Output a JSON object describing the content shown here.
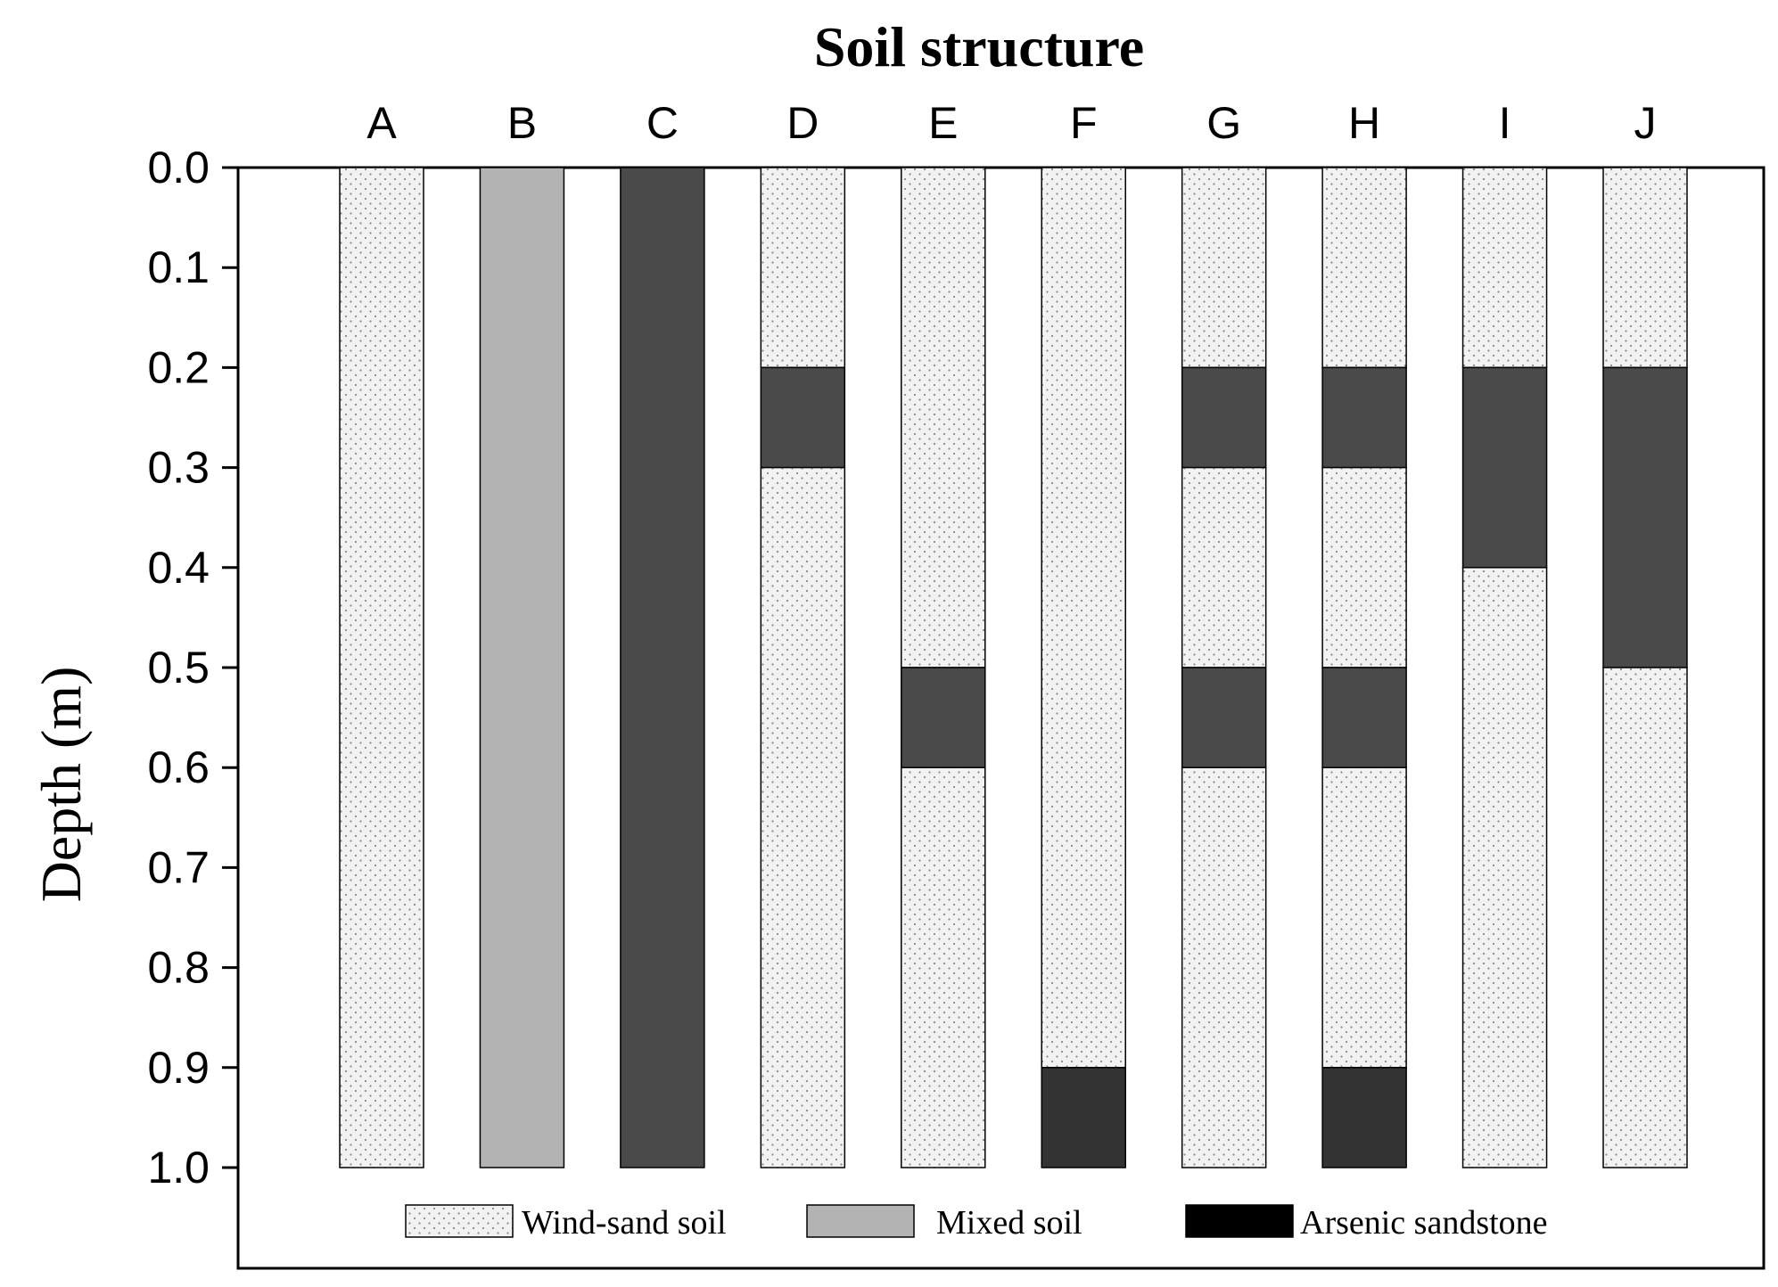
{
  "chart_data": {
    "type": "bar",
    "orientation": "stacked-columns-depth-profile",
    "title": "Soil structure",
    "ylabel": "Depth (m)",
    "xlabel": "",
    "ylim": [
      0.0,
      1.0
    ],
    "y_inverted": true,
    "yticks": [
      "0.0",
      "0.1",
      "0.2",
      "0.3",
      "0.4",
      "0.5",
      "0.6",
      "0.7",
      "0.8",
      "0.9",
      "1.0"
    ],
    "categories": [
      "A",
      "B",
      "C",
      "D",
      "E",
      "F",
      "G",
      "H",
      "I",
      "J"
    ],
    "legend": [
      {
        "name": "Wind-sand soil",
        "pattern": "dotted",
        "color": "#f2f2f2"
      },
      {
        "name": "Mixed soil",
        "pattern": "solid",
        "color": "#b3b3b3"
      },
      {
        "name": "Arsenic sandstone",
        "pattern": "solid",
        "color": "#000000"
      }
    ],
    "profiles": [
      {
        "category": "A",
        "layers": [
          {
            "from": 0.0,
            "to": 1.0,
            "fill": "#f2f2f2",
            "pattern": "dotted"
          }
        ]
      },
      {
        "category": "B",
        "layers": [
          {
            "from": 0.0,
            "to": 1.0,
            "fill": "#b3b3b3",
            "pattern": "solid"
          }
        ]
      },
      {
        "category": "C",
        "layers": [
          {
            "from": 0.0,
            "to": 1.0,
            "fill": "#4a4a4a",
            "pattern": "solid"
          }
        ]
      },
      {
        "category": "D",
        "layers": [
          {
            "from": 0.0,
            "to": 0.2,
            "fill": "#f2f2f2",
            "pattern": "dotted"
          },
          {
            "from": 0.2,
            "to": 0.3,
            "fill": "#4a4a4a",
            "pattern": "solid"
          },
          {
            "from": 0.3,
            "to": 1.0,
            "fill": "#f2f2f2",
            "pattern": "dotted"
          }
        ]
      },
      {
        "category": "E",
        "layers": [
          {
            "from": 0.0,
            "to": 0.5,
            "fill": "#f2f2f2",
            "pattern": "dotted"
          },
          {
            "from": 0.5,
            "to": 0.6,
            "fill": "#4a4a4a",
            "pattern": "solid"
          },
          {
            "from": 0.6,
            "to": 1.0,
            "fill": "#f2f2f2",
            "pattern": "dotted"
          }
        ]
      },
      {
        "category": "F",
        "layers": [
          {
            "from": 0.0,
            "to": 0.9,
            "fill": "#f2f2f2",
            "pattern": "dotted"
          },
          {
            "from": 0.9,
            "to": 1.0,
            "fill": "#333333",
            "pattern": "solid"
          }
        ]
      },
      {
        "category": "G",
        "layers": [
          {
            "from": 0.0,
            "to": 0.2,
            "fill": "#f2f2f2",
            "pattern": "dotted"
          },
          {
            "from": 0.2,
            "to": 0.3,
            "fill": "#4a4a4a",
            "pattern": "solid"
          },
          {
            "from": 0.3,
            "to": 0.5,
            "fill": "#f2f2f2",
            "pattern": "dotted"
          },
          {
            "from": 0.5,
            "to": 0.6,
            "fill": "#4a4a4a",
            "pattern": "solid"
          },
          {
            "from": 0.6,
            "to": 1.0,
            "fill": "#f2f2f2",
            "pattern": "dotted"
          }
        ]
      },
      {
        "category": "H",
        "layers": [
          {
            "from": 0.0,
            "to": 0.2,
            "fill": "#f2f2f2",
            "pattern": "dotted"
          },
          {
            "from": 0.2,
            "to": 0.3,
            "fill": "#4a4a4a",
            "pattern": "solid"
          },
          {
            "from": 0.3,
            "to": 0.5,
            "fill": "#f2f2f2",
            "pattern": "dotted"
          },
          {
            "from": 0.5,
            "to": 0.6,
            "fill": "#4a4a4a",
            "pattern": "solid"
          },
          {
            "from": 0.6,
            "to": 0.9,
            "fill": "#f2f2f2",
            "pattern": "dotted"
          },
          {
            "from": 0.9,
            "to": 1.0,
            "fill": "#333333",
            "pattern": "solid"
          }
        ]
      },
      {
        "category": "I",
        "layers": [
          {
            "from": 0.0,
            "to": 0.2,
            "fill": "#f2f2f2",
            "pattern": "dotted"
          },
          {
            "from": 0.2,
            "to": 0.4,
            "fill": "#4a4a4a",
            "pattern": "solid"
          },
          {
            "from": 0.4,
            "to": 1.0,
            "fill": "#f2f2f2",
            "pattern": "dotted"
          }
        ]
      },
      {
        "category": "J",
        "layers": [
          {
            "from": 0.0,
            "to": 0.2,
            "fill": "#f2f2f2",
            "pattern": "dotted"
          },
          {
            "from": 0.2,
            "to": 0.5,
            "fill": "#4a4a4a",
            "pattern": "solid"
          },
          {
            "from": 0.5,
            "to": 1.0,
            "fill": "#f2f2f2",
            "pattern": "dotted"
          }
        ]
      }
    ]
  }
}
